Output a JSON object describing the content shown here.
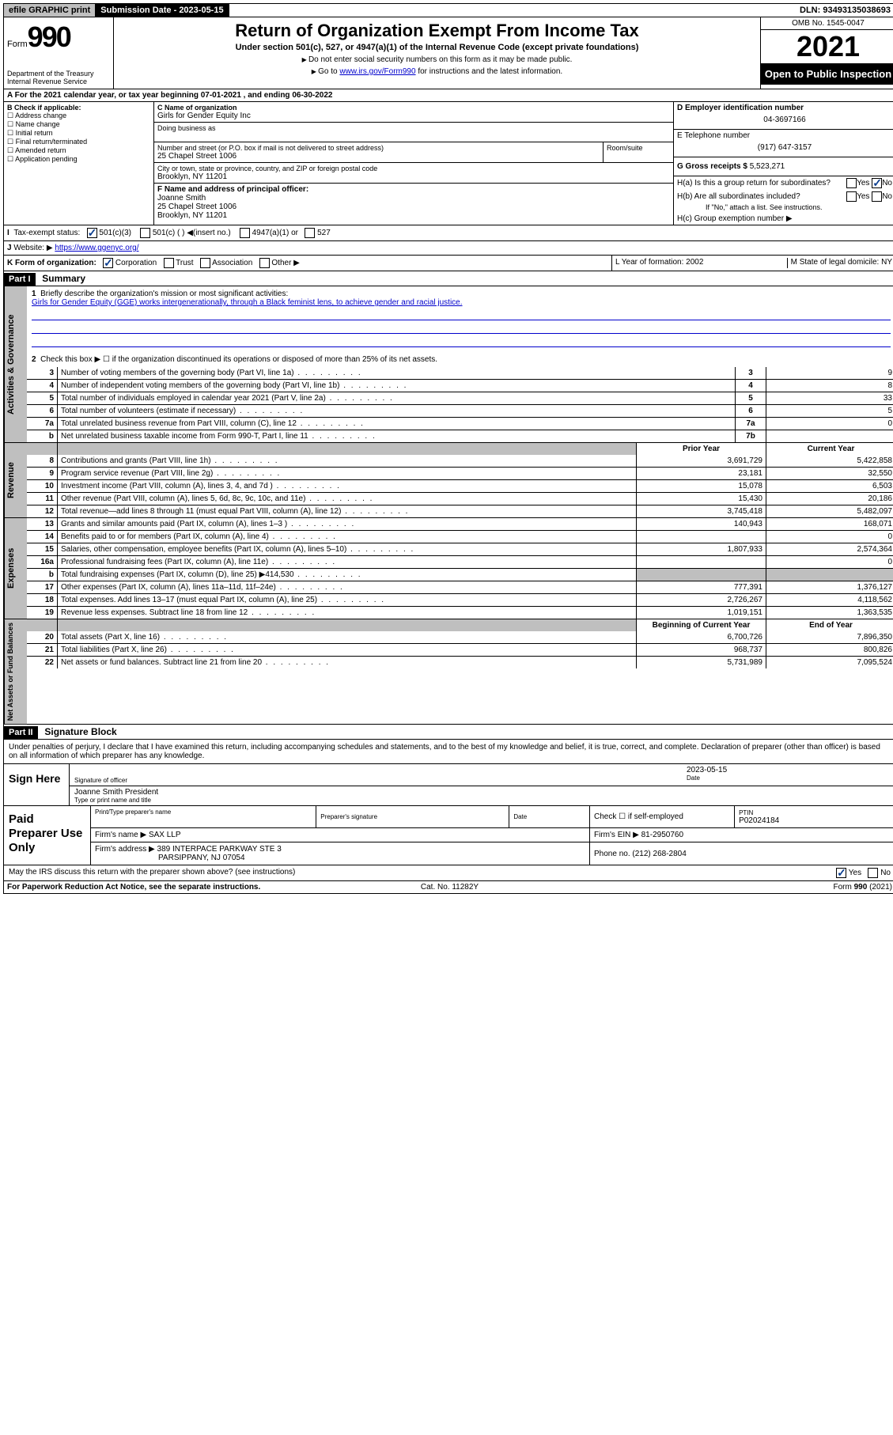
{
  "topbar": {
    "efile": "efile GRAPHIC print",
    "submission_label": "Submission Date - 2023-05-15",
    "dln": "DLN: 93493135038693"
  },
  "header": {
    "form_word": "Form",
    "form_no": "990",
    "title": "Return of Organization Exempt From Income Tax",
    "subtitle": "Under section 501(c), 527, or 4947(a)(1) of the Internal Revenue Code (except private foundations)",
    "note1": "Do not enter social security numbers on this form as it may be made public.",
    "note2_pre": "Go to ",
    "note2_link": "www.irs.gov/Form990",
    "note2_post": " for instructions and the latest information.",
    "dept": "Department of the Treasury\nInternal Revenue Service",
    "omb": "OMB No. 1545-0047",
    "year": "2021",
    "open": "Open to Public Inspection"
  },
  "row_a": {
    "text": "A For the 2021 calendar year, or tax year beginning 07-01-2021   , and ending 06-30-2022"
  },
  "col_b": {
    "header": "B Check if applicable:",
    "items": [
      "Address change",
      "Name change",
      "Initial return",
      "Final return/terminated",
      "Amended return",
      "Application pending"
    ]
  },
  "col_c": {
    "name_label": "C Name of organization",
    "name": "Girls for Gender Equity Inc",
    "dba_label": "Doing business as",
    "addr_label": "Number and street (or P.O. box if mail is not delivered to street address)",
    "room_label": "Room/suite",
    "addr": "25 Chapel Street 1006",
    "city_label": "City or town, state or province, country, and ZIP or foreign postal code",
    "city": "Brooklyn, NY  11201",
    "f_label": "F Name and address of principal officer:",
    "f_name": "Joanne Smith",
    "f_addr1": "25 Chapel Street 1006",
    "f_addr2": "Brooklyn, NY  11201"
  },
  "col_d": {
    "ein_label": "D Employer identification number",
    "ein": "04-3697166",
    "tel_label": "E Telephone number",
    "tel": "(917) 647-3157",
    "gross_label": "G Gross receipts $",
    "gross": "5,523,271",
    "ha": "H(a)  Is this a group return for subordinates?",
    "hb": "H(b)  Are all subordinates included?",
    "hb_note": "If \"No,\" attach a list. See instructions.",
    "hc": "H(c)  Group exemption number ▶"
  },
  "row_i": {
    "label": "I",
    "text": "Tax-exempt status:",
    "opts": [
      "501(c)(3)",
      "501(c) (  ) ◀(insert no.)",
      "4947(a)(1) or",
      "527"
    ]
  },
  "row_j": {
    "label": "J",
    "text": "Website: ▶",
    "url": "https://www.ggenyc.org/"
  },
  "row_k": {
    "label": "K Form of organization:",
    "opts": [
      "Corporation",
      "Trust",
      "Association",
      "Other ▶"
    ],
    "l": "L Year of formation: 2002",
    "m": "M State of legal domicile: NY"
  },
  "part1": {
    "header": "Part I",
    "title": "Summary",
    "q1_label": "1",
    "q1": "Briefly describe the organization's mission or most significant activities:",
    "mission": "Girls for Gender Equity (GGE) works intergenerationally, through a Black feminist lens, to achieve gender and racial justice.",
    "q2_label": "2",
    "q2": "Check this box ▶ ☐  if the organization discontinued its operations or disposed of more than 25% of its net assets.",
    "gov_rows": [
      {
        "n": "3",
        "desc": "Number of voting members of the governing body (Part VI, line 1a)",
        "ln": "3",
        "val": "9"
      },
      {
        "n": "4",
        "desc": "Number of independent voting members of the governing body (Part VI, line 1b)",
        "ln": "4",
        "val": "8"
      },
      {
        "n": "5",
        "desc": "Total number of individuals employed in calendar year 2021 (Part V, line 2a)",
        "ln": "5",
        "val": "33"
      },
      {
        "n": "6",
        "desc": "Total number of volunteers (estimate if necessary)",
        "ln": "6",
        "val": "5"
      },
      {
        "n": "7a",
        "desc": "Total unrelated business revenue from Part VIII, column (C), line 12",
        "ln": "7a",
        "val": "0"
      },
      {
        "n": "b",
        "desc": "Net unrelated business taxable income from Form 990-T, Part I, line 11",
        "ln": "7b",
        "val": ""
      }
    ],
    "col_prior": "Prior Year",
    "col_current": "Current Year",
    "revenue_rows": [
      {
        "n": "8",
        "desc": "Contributions and grants (Part VIII, line 1h)",
        "p": "3,691,729",
        "c": "5,422,858"
      },
      {
        "n": "9",
        "desc": "Program service revenue (Part VIII, line 2g)",
        "p": "23,181",
        "c": "32,550"
      },
      {
        "n": "10",
        "desc": "Investment income (Part VIII, column (A), lines 3, 4, and 7d )",
        "p": "15,078",
        "c": "6,503"
      },
      {
        "n": "11",
        "desc": "Other revenue (Part VIII, column (A), lines 5, 6d, 8c, 9c, 10c, and 11e)",
        "p": "15,430",
        "c": "20,186"
      },
      {
        "n": "12",
        "desc": "Total revenue—add lines 8 through 11 (must equal Part VIII, column (A), line 12)",
        "p": "3,745,418",
        "c": "5,482,097"
      }
    ],
    "expense_rows": [
      {
        "n": "13",
        "desc": "Grants and similar amounts paid (Part IX, column (A), lines 1–3 )",
        "p": "140,943",
        "c": "168,071"
      },
      {
        "n": "14",
        "desc": "Benefits paid to or for members (Part IX, column (A), line 4)",
        "p": "",
        "c": "0"
      },
      {
        "n": "15",
        "desc": "Salaries, other compensation, employee benefits (Part IX, column (A), lines 5–10)",
        "p": "1,807,933",
        "c": "2,574,364"
      },
      {
        "n": "16a",
        "desc": "Professional fundraising fees (Part IX, column (A), line 11e)",
        "p": "",
        "c": "0"
      },
      {
        "n": "b",
        "desc": "Total fundraising expenses (Part IX, column (D), line 25) ▶414,530",
        "p": "GRAY",
        "c": "GRAY"
      },
      {
        "n": "17",
        "desc": "Other expenses (Part IX, column (A), lines 11a–11d, 11f–24e)",
        "p": "777,391",
        "c": "1,376,127"
      },
      {
        "n": "18",
        "desc": "Total expenses. Add lines 13–17 (must equal Part IX, column (A), line 25)",
        "p": "2,726,267",
        "c": "4,118,562"
      },
      {
        "n": "19",
        "desc": "Revenue less expenses. Subtract line 18 from line 12",
        "p": "1,019,151",
        "c": "1,363,535"
      }
    ],
    "col_begin": "Beginning of Current Year",
    "col_end": "End of Year",
    "net_rows": [
      {
        "n": "20",
        "desc": "Total assets (Part X, line 16)",
        "p": "6,700,726",
        "c": "7,896,350"
      },
      {
        "n": "21",
        "desc": "Total liabilities (Part X, line 26)",
        "p": "968,737",
        "c": "800,826"
      },
      {
        "n": "22",
        "desc": "Net assets or fund balances. Subtract line 21 from line 20",
        "p": "5,731,989",
        "c": "7,095,524"
      }
    ],
    "vlabels": {
      "gov": "Activities & Governance",
      "rev": "Revenue",
      "exp": "Expenses",
      "net": "Net Assets or Fund Balances"
    }
  },
  "part2": {
    "header": "Part II",
    "title": "Signature Block",
    "declare": "Under penalties of perjury, I declare that I have examined this return, including accompanying schedules and statements, and to the best of my knowledge and belief, it is true, correct, and complete. Declaration of preparer (other than officer) is based on all information of which preparer has any knowledge.",
    "sign_here": "Sign Here",
    "sig_officer": "Signature of officer",
    "sig_date": "2023-05-15",
    "date_label": "Date",
    "officer_name": "Joanne Smith President",
    "officer_name_label": "Type or print name and title",
    "paid_label": "Paid Preparer Use Only",
    "prep_name_label": "Print/Type preparer's name",
    "prep_sig_label": "Preparer's signature",
    "prep_date_label": "Date",
    "check_if": "Check ☐ if self-employed",
    "ptin_label": "PTIN",
    "ptin": "P02024184",
    "firm_name_label": "Firm's name   ▶",
    "firm_name": "SAX LLP",
    "firm_ein_label": "Firm's EIN ▶",
    "firm_ein": "81-2950760",
    "firm_addr_label": "Firm's address ▶",
    "firm_addr1": "389 INTERPACE PARKWAY STE 3",
    "firm_addr2": "PARSIPPANY, NJ  07054",
    "phone_label": "Phone no.",
    "phone": "(212) 268-2804",
    "may_irs": "May the IRS discuss this return with the preparer shown above? (see instructions)",
    "yes": "Yes",
    "no": "No"
  },
  "footer": {
    "left": "For Paperwork Reduction Act Notice, see the separate instructions.",
    "mid": "Cat. No. 11282Y",
    "right": "Form 990 (2021)"
  }
}
